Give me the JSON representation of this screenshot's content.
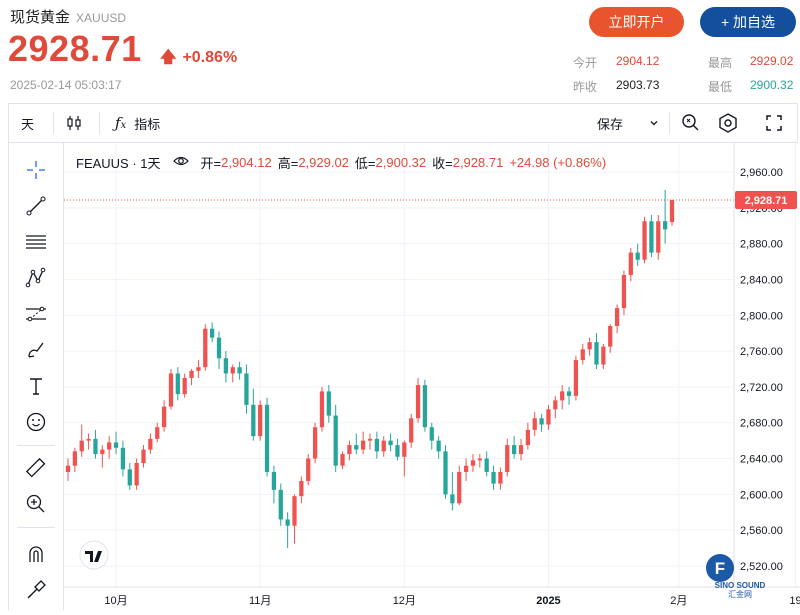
{
  "header": {
    "title": "现货黄金",
    "symbol": "XAUUSD",
    "price": "2928.71",
    "change_pct": "+0.86%",
    "timestamp": "2025-02-14 05:03:17",
    "buttons": {
      "open_account": "立即开户",
      "add_watch": "+ 加自选"
    },
    "stats": {
      "open_label": "今开",
      "open": "2904.12",
      "prev_label": "昨收",
      "prev": "2903.73",
      "high_label": "最高",
      "high": "2929.02",
      "low_label": "最低",
      "low": "2900.32"
    }
  },
  "toolbar": {
    "interval": "天",
    "indicators": "指标",
    "save": "保存"
  },
  "legend": {
    "name": "FEAUUS · 1天",
    "open_k": "开=",
    "open_v": "2,904.12",
    "high_k": "高=",
    "high_v": "2,929.02",
    "low_k": "低=",
    "low_v": "2,900.32",
    "close_k": "收=",
    "close_v": "2,928.71",
    "change": "+24.98 (+0.86%)"
  },
  "price_tag": "2,928.71",
  "colors": {
    "up": "#ef5350",
    "down": "#26a69a",
    "accent": "#e04a3a",
    "brand": "#134f9c"
  },
  "chart_data": {
    "type": "candlestick",
    "y_axis": {
      "ylim": [
        2500,
        2980
      ],
      "ticks": [
        "2,960.00",
        "2,920.00",
        "2,880.00",
        "2,840.00",
        "2,800.00",
        "2,760.00",
        "2,720.00",
        "2,680.00",
        "2,640.00",
        "2,600.00",
        "2,560.00",
        "2,520.00"
      ]
    },
    "x_axis": {
      "labels": [
        "10月",
        "11月",
        "12月",
        "2025",
        "2月",
        "19"
      ]
    },
    "last_close": 2928.71,
    "candles": [
      [
        2625,
        2640,
        2615,
        2632
      ],
      [
        2632,
        2652,
        2625,
        2648
      ],
      [
        2648,
        2678,
        2642,
        2660
      ],
      [
        2660,
        2668,
        2650,
        2662
      ],
      [
        2662,
        2672,
        2640,
        2645
      ],
      [
        2645,
        2655,
        2630,
        2650
      ],
      [
        2650,
        2665,
        2640,
        2658
      ],
      [
        2658,
        2670,
        2645,
        2652
      ],
      [
        2652,
        2660,
        2620,
        2628
      ],
      [
        2628,
        2635,
        2605,
        2610
      ],
      [
        2610,
        2640,
        2605,
        2635
      ],
      [
        2635,
        2655,
        2630,
        2650
      ],
      [
        2650,
        2668,
        2645,
        2662
      ],
      [
        2662,
        2680,
        2658,
        2675
      ],
      [
        2675,
        2705,
        2670,
        2698
      ],
      [
        2698,
        2740,
        2695,
        2735
      ],
      [
        2735,
        2742,
        2705,
        2712
      ],
      [
        2712,
        2735,
        2708,
        2730
      ],
      [
        2730,
        2740,
        2722,
        2738
      ],
      [
        2738,
        2750,
        2730,
        2742
      ],
      [
        2742,
        2790,
        2738,
        2785
      ],
      [
        2785,
        2792,
        2770,
        2775
      ],
      [
        2775,
        2782,
        2740,
        2752
      ],
      [
        2752,
        2760,
        2725,
        2735
      ],
      [
        2735,
        2745,
        2725,
        2742
      ],
      [
        2742,
        2748,
        2728,
        2735
      ],
      [
        2735,
        2745,
        2690,
        2700
      ],
      [
        2700,
        2718,
        2660,
        2665
      ],
      [
        2665,
        2705,
        2660,
        2700
      ],
      [
        2700,
        2708,
        2620,
        2625
      ],
      [
        2625,
        2632,
        2590,
        2605
      ],
      [
        2605,
        2612,
        2565,
        2572
      ],
      [
        2572,
        2580,
        2540,
        2565
      ],
      [
        2565,
        2600,
        2545,
        2598
      ],
      [
        2598,
        2620,
        2590,
        2615
      ],
      [
        2615,
        2645,
        2610,
        2640
      ],
      [
        2640,
        2680,
        2635,
        2675
      ],
      [
        2675,
        2720,
        2670,
        2715
      ],
      [
        2715,
        2722,
        2680,
        2688
      ],
      [
        2688,
        2700,
        2625,
        2632
      ],
      [
        2632,
        2648,
        2628,
        2645
      ],
      [
        2645,
        2660,
        2638,
        2655
      ],
      [
        2655,
        2668,
        2645,
        2650
      ],
      [
        2650,
        2670,
        2645,
        2660
      ],
      [
        2660,
        2668,
        2650,
        2662
      ],
      [
        2662,
        2670,
        2640,
        2648
      ],
      [
        2648,
        2665,
        2642,
        2660
      ],
      [
        2660,
        2668,
        2648,
        2655
      ],
      [
        2655,
        2662,
        2638,
        2642
      ],
      [
        2642,
        2660,
        2620,
        2658
      ],
      [
        2658,
        2690,
        2652,
        2685
      ],
      [
        2685,
        2730,
        2680,
        2722
      ],
      [
        2722,
        2728,
        2670,
        2675
      ],
      [
        2675,
        2680,
        2650,
        2660
      ],
      [
        2660,
        2665,
        2640,
        2648
      ],
      [
        2648,
        2655,
        2595,
        2600
      ],
      [
        2600,
        2625,
        2582,
        2590
      ],
      [
        2590,
        2632,
        2588,
        2625
      ],
      [
        2625,
        2640,
        2615,
        2632
      ],
      [
        2632,
        2645,
        2625,
        2638
      ],
      [
        2638,
        2645,
        2630,
        2640
      ],
      [
        2640,
        2648,
        2620,
        2625
      ],
      [
        2625,
        2632,
        2605,
        2612
      ],
      [
        2612,
        2630,
        2605,
        2625
      ],
      [
        2625,
        2662,
        2620,
        2655
      ],
      [
        2655,
        2665,
        2640,
        2645
      ],
      [
        2645,
        2662,
        2638,
        2655
      ],
      [
        2655,
        2680,
        2650,
        2672
      ],
      [
        2672,
        2692,
        2665,
        2685
      ],
      [
        2685,
        2690,
        2670,
        2678
      ],
      [
        2678,
        2700,
        2672,
        2695
      ],
      [
        2695,
        2710,
        2685,
        2705
      ],
      [
        2705,
        2722,
        2695,
        2715
      ],
      [
        2715,
        2720,
        2700,
        2710
      ],
      [
        2710,
        2755,
        2705,
        2750
      ],
      [
        2750,
        2768,
        2745,
        2762
      ],
      [
        2762,
        2775,
        2755,
        2770
      ],
      [
        2770,
        2780,
        2740,
        2745
      ],
      [
        2745,
        2768,
        2740,
        2765
      ],
      [
        2765,
        2790,
        2758,
        2788
      ],
      [
        2788,
        2812,
        2780,
        2808
      ],
      [
        2808,
        2850,
        2800,
        2845
      ],
      [
        2845,
        2875,
        2838,
        2870
      ],
      [
        2870,
        2880,
        2855,
        2862
      ],
      [
        2862,
        2910,
        2858,
        2905
      ],
      [
        2905,
        2912,
        2865,
        2870
      ],
      [
        2870,
        2912,
        2862,
        2905
      ],
      [
        2905,
        2940,
        2880,
        2896
      ],
      [
        2904,
        2929,
        2900,
        2928.71
      ]
    ]
  }
}
